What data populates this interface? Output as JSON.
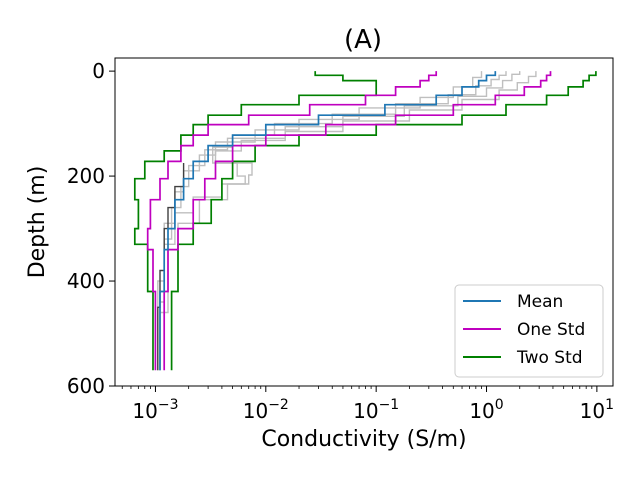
{
  "chart_data": {
    "type": "line",
    "title": "(A)",
    "xlabel": "Conductivity (S/m)",
    "ylabel": "Depth (m)",
    "xscale": "log",
    "xlim": [
      0.00043,
      14
    ],
    "ylim": [
      600,
      -25
    ],
    "y_inverted": true,
    "grid": false,
    "legend_position": "bottom-right",
    "x_ticks": [
      {
        "base": "10",
        "exp": "−3",
        "value": 0.001
      },
      {
        "base": "10",
        "exp": "−2",
        "value": 0.01
      },
      {
        "base": "10",
        "exp": "−1",
        "value": 0.1
      },
      {
        "base": "10",
        "exp": "0",
        "value": 1
      },
      {
        "base": "10",
        "exp": "1",
        "value": 10
      }
    ],
    "y_ticks": [
      {
        "label": "0",
        "value": 0
      },
      {
        "label": "200",
        "value": 200
      },
      {
        "label": "400",
        "value": 400
      },
      {
        "label": "600",
        "value": 600
      }
    ],
    "legend": [
      {
        "label": "Mean",
        "color": "#1f77b4"
      },
      {
        "label": "One Std",
        "color": "#bf00bf"
      },
      {
        "label": "Two Std",
        "color": "#008000"
      }
    ],
    "sample_color": "#bfbfbf",
    "series": [
      {
        "role": "sample",
        "color": "#bfbfbf",
        "points": [
          [
            1.5,
            0
          ],
          [
            1.5,
            8
          ],
          [
            1.3,
            8
          ],
          [
            1.3,
            16
          ],
          [
            1.1,
            16
          ],
          [
            1.1,
            28
          ],
          [
            0.8,
            28
          ],
          [
            0.8,
            45
          ],
          [
            0.45,
            45
          ],
          [
            0.45,
            62
          ],
          [
            0.15,
            62
          ],
          [
            0.15,
            82
          ],
          [
            0.04,
            82
          ],
          [
            0.04,
            100
          ],
          [
            0.012,
            100
          ],
          [
            0.012,
            122
          ],
          [
            0.005,
            122
          ],
          [
            0.005,
            145
          ],
          [
            0.0033,
            145
          ],
          [
            0.0033,
            175
          ],
          [
            0.0055,
            175
          ],
          [
            0.0055,
            200
          ],
          [
            0.0065,
            200
          ],
          [
            0.0065,
            215
          ],
          [
            0.004,
            215
          ],
          [
            0.004,
            240
          ],
          [
            0.0022,
            240
          ],
          [
            0.0022,
            270
          ],
          [
            0.0015,
            270
          ],
          [
            0.0015,
            330
          ],
          [
            0.0012,
            330
          ],
          [
            0.0012,
            440
          ],
          [
            0.0011,
            440
          ],
          [
            0.0011,
            570
          ]
        ]
      },
      {
        "role": "sample",
        "color": "#bfbfbf",
        "points": [
          [
            2.8,
            0
          ],
          [
            2.8,
            10
          ],
          [
            2.4,
            10
          ],
          [
            2.4,
            22
          ],
          [
            1.9,
            22
          ],
          [
            1.9,
            36
          ],
          [
            1.3,
            36
          ],
          [
            1.3,
            54
          ],
          [
            0.6,
            54
          ],
          [
            0.6,
            74
          ],
          [
            0.2,
            74
          ],
          [
            0.2,
            95
          ],
          [
            0.05,
            95
          ],
          [
            0.05,
            115
          ],
          [
            0.015,
            115
          ],
          [
            0.015,
            132
          ],
          [
            0.006,
            132
          ],
          [
            0.006,
            152
          ],
          [
            0.0035,
            152
          ],
          [
            0.0035,
            175
          ],
          [
            0.0075,
            175
          ],
          [
            0.0075,
            198
          ],
          [
            0.007,
            198
          ],
          [
            0.007,
            215
          ],
          [
            0.0045,
            215
          ],
          [
            0.0045,
            245
          ],
          [
            0.0025,
            245
          ],
          [
            0.0025,
            290
          ],
          [
            0.0016,
            290
          ],
          [
            0.0016,
            340
          ],
          [
            0.0013,
            340
          ],
          [
            0.0013,
            460
          ],
          [
            0.0011,
            460
          ],
          [
            0.0011,
            570
          ]
        ]
      },
      {
        "role": "sample",
        "color": "#bfbfbf",
        "points": [
          [
            0.9,
            0
          ],
          [
            0.9,
            12
          ],
          [
            0.75,
            12
          ],
          [
            0.75,
            30
          ],
          [
            0.5,
            30
          ],
          [
            0.5,
            50
          ],
          [
            0.25,
            50
          ],
          [
            0.25,
            70
          ],
          [
            0.07,
            70
          ],
          [
            0.07,
            92
          ],
          [
            0.02,
            92
          ],
          [
            0.02,
            112
          ],
          [
            0.008,
            112
          ],
          [
            0.008,
            135
          ],
          [
            0.0035,
            135
          ],
          [
            0.0035,
            160
          ],
          [
            0.0025,
            160
          ],
          [
            0.0025,
            190
          ],
          [
            0.0018,
            190
          ],
          [
            0.0018,
            230
          ],
          [
            0.0015,
            230
          ],
          [
            0.0015,
            290
          ],
          [
            0.0012,
            290
          ],
          [
            0.0012,
            400
          ],
          [
            0.00105,
            400
          ],
          [
            0.00105,
            570
          ]
        ]
      },
      {
        "role": "sample",
        "color": "#bfbfbf",
        "points": [
          [
            2.0,
            0
          ],
          [
            2.0,
            6
          ],
          [
            1.7,
            6
          ],
          [
            1.7,
            18
          ],
          [
            1.4,
            18
          ],
          [
            1.4,
            32
          ],
          [
            1.0,
            32
          ],
          [
            1.0,
            48
          ],
          [
            0.55,
            48
          ],
          [
            0.55,
            66
          ],
          [
            0.18,
            66
          ],
          [
            0.18,
            86
          ],
          [
            0.05,
            86
          ],
          [
            0.05,
            106
          ],
          [
            0.015,
            106
          ],
          [
            0.015,
            128
          ],
          [
            0.0045,
            128
          ],
          [
            0.0045,
            150
          ],
          [
            0.0028,
            150
          ],
          [
            0.0028,
            180
          ],
          [
            0.002,
            180
          ],
          [
            0.002,
            220
          ],
          [
            0.0017,
            220
          ],
          [
            0.0017,
            260
          ],
          [
            0.0014,
            260
          ],
          [
            0.0014,
            320
          ],
          [
            0.0012,
            320
          ],
          [
            0.0012,
            420
          ],
          [
            0.0011,
            420
          ],
          [
            0.0011,
            570
          ]
        ]
      },
      {
        "role": "sample",
        "color": "#404040",
        "points": [
          [
            0.0018,
            175
          ],
          [
            0.0018,
            220
          ],
          [
            0.0015,
            220
          ],
          [
            0.0015,
            260
          ],
          [
            0.0013,
            260
          ],
          [
            0.0013,
            300
          ],
          [
            0.0012,
            300
          ],
          [
            0.0012,
            380
          ],
          [
            0.0011,
            380
          ],
          [
            0.0011,
            450
          ],
          [
            0.00105,
            450
          ],
          [
            0.00105,
            570
          ]
        ]
      },
      {
        "role": "mean",
        "color": "#1f77b4",
        "points": [
          [
            1.2,
            0
          ],
          [
            1.2,
            8
          ],
          [
            1.0,
            8
          ],
          [
            1.0,
            18
          ],
          [
            0.85,
            18
          ],
          [
            0.85,
            30
          ],
          [
            0.6,
            30
          ],
          [
            0.6,
            46
          ],
          [
            0.35,
            46
          ],
          [
            0.35,
            64
          ],
          [
            0.12,
            64
          ],
          [
            0.12,
            84
          ],
          [
            0.03,
            84
          ],
          [
            0.03,
            102
          ],
          [
            0.01,
            102
          ],
          [
            0.01,
            122
          ],
          [
            0.005,
            122
          ],
          [
            0.005,
            142
          ],
          [
            0.003,
            142
          ],
          [
            0.003,
            172
          ],
          [
            0.0022,
            172
          ],
          [
            0.0022,
            205
          ],
          [
            0.0018,
            205
          ],
          [
            0.0018,
            245
          ],
          [
            0.0015,
            245
          ],
          [
            0.0015,
            300
          ],
          [
            0.0013,
            300
          ],
          [
            0.0013,
            340
          ],
          [
            0.0012,
            340
          ],
          [
            0.0012,
            420
          ],
          [
            0.0011,
            420
          ],
          [
            0.0011,
            570
          ]
        ]
      },
      {
        "role": "one_std_low",
        "color": "#bf00bf",
        "points": [
          [
            0.35,
            0
          ],
          [
            0.35,
            8
          ],
          [
            0.3,
            8
          ],
          [
            0.3,
            18
          ],
          [
            0.25,
            18
          ],
          [
            0.25,
            30
          ],
          [
            0.15,
            30
          ],
          [
            0.15,
            46
          ],
          [
            0.08,
            46
          ],
          [
            0.08,
            64
          ],
          [
            0.025,
            64
          ],
          [
            0.025,
            84
          ],
          [
            0.007,
            84
          ],
          [
            0.007,
            102
          ],
          [
            0.003,
            102
          ],
          [
            0.003,
            122
          ],
          [
            0.0022,
            122
          ],
          [
            0.0022,
            142
          ],
          [
            0.0017,
            142
          ],
          [
            0.0017,
            172
          ],
          [
            0.0013,
            172
          ],
          [
            0.0013,
            205
          ],
          [
            0.0011,
            205
          ],
          [
            0.0011,
            245
          ],
          [
            0.0009,
            245
          ],
          [
            0.0009,
            300
          ],
          [
            0.00085,
            300
          ],
          [
            0.00085,
            340
          ],
          [
            0.00095,
            340
          ],
          [
            0.00095,
            420
          ],
          [
            0.001,
            420
          ],
          [
            0.001,
            570
          ]
        ]
      },
      {
        "role": "one_std_high",
        "color": "#bf00bf",
        "points": [
          [
            3.8,
            0
          ],
          [
            3.8,
            8
          ],
          [
            3.5,
            8
          ],
          [
            3.5,
            18
          ],
          [
            3.1,
            18
          ],
          [
            3.1,
            30
          ],
          [
            2.2,
            30
          ],
          [
            2.2,
            46
          ],
          [
            1.2,
            46
          ],
          [
            1.2,
            64
          ],
          [
            0.5,
            64
          ],
          [
            0.5,
            84
          ],
          [
            0.15,
            84
          ],
          [
            0.15,
            102
          ],
          [
            0.035,
            102
          ],
          [
            0.035,
            122
          ],
          [
            0.01,
            122
          ],
          [
            0.01,
            142
          ],
          [
            0.005,
            142
          ],
          [
            0.005,
            172
          ],
          [
            0.0035,
            172
          ],
          [
            0.0035,
            205
          ],
          [
            0.0028,
            205
          ],
          [
            0.0028,
            245
          ],
          [
            0.0022,
            245
          ],
          [
            0.0022,
            300
          ],
          [
            0.0016,
            300
          ],
          [
            0.0016,
            340
          ],
          [
            0.0013,
            340
          ],
          [
            0.0013,
            420
          ],
          [
            0.0012,
            420
          ],
          [
            0.0012,
            570
          ]
        ]
      },
      {
        "role": "two_std_low",
        "color": "#008000",
        "points": [
          [
            0.028,
            0
          ],
          [
            0.028,
            8
          ],
          [
            0.05,
            8
          ],
          [
            0.05,
            18
          ],
          [
            0.1,
            18
          ],
          [
            0.1,
            30
          ],
          [
            0.1,
            30
          ],
          [
            0.1,
            46
          ],
          [
            0.02,
            46
          ],
          [
            0.02,
            64
          ],
          [
            0.006,
            64
          ],
          [
            0.006,
            84
          ],
          [
            0.003,
            84
          ],
          [
            0.003,
            102
          ],
          [
            0.0022,
            102
          ],
          [
            0.0022,
            122
          ],
          [
            0.0017,
            122
          ],
          [
            0.0017,
            152
          ],
          [
            0.0012,
            152
          ],
          [
            0.0012,
            172
          ],
          [
            0.0008,
            172
          ],
          [
            0.0008,
            205
          ],
          [
            0.00065,
            205
          ],
          [
            0.00065,
            245
          ],
          [
            0.0007,
            245
          ],
          [
            0.0007,
            300
          ],
          [
            0.00065,
            300
          ],
          [
            0.00065,
            330
          ],
          [
            0.00085,
            330
          ],
          [
            0.00085,
            420
          ],
          [
            0.00095,
            420
          ],
          [
            0.00095,
            570
          ]
        ]
      },
      {
        "role": "two_std_high",
        "color": "#008000",
        "points": [
          [
            9.8,
            0
          ],
          [
            9.8,
            8
          ],
          [
            8.5,
            8
          ],
          [
            8.5,
            18
          ],
          [
            7.5,
            18
          ],
          [
            7.5,
            30
          ],
          [
            5.5,
            30
          ],
          [
            5.5,
            46
          ],
          [
            3.5,
            46
          ],
          [
            3.5,
            64
          ],
          [
            1.5,
            64
          ],
          [
            1.5,
            84
          ],
          [
            0.6,
            84
          ],
          [
            0.6,
            102
          ],
          [
            0.1,
            102
          ],
          [
            0.1,
            122
          ],
          [
            0.02,
            122
          ],
          [
            0.02,
            142
          ],
          [
            0.008,
            142
          ],
          [
            0.008,
            172
          ],
          [
            0.005,
            172
          ],
          [
            0.005,
            205
          ],
          [
            0.004,
            205
          ],
          [
            0.004,
            245
          ],
          [
            0.0032,
            245
          ],
          [
            0.0032,
            290
          ],
          [
            0.0022,
            290
          ],
          [
            0.0022,
            330
          ],
          [
            0.0016,
            330
          ],
          [
            0.0016,
            420
          ],
          [
            0.0014,
            420
          ],
          [
            0.0014,
            570
          ]
        ]
      }
    ]
  }
}
